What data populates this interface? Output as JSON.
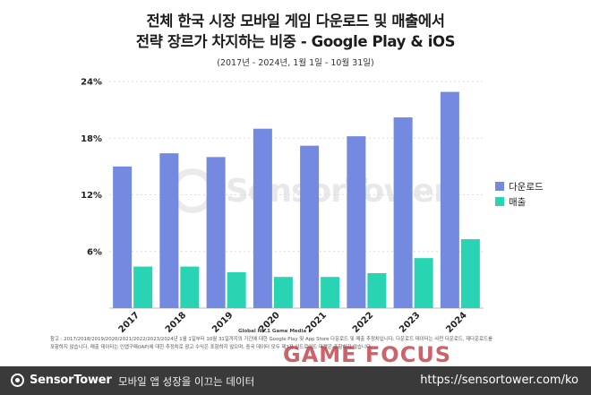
{
  "title_line1": "전체 한국 시장 모바일 게임 다운로드 및 매출에서",
  "title_line2": "전략 장르가 차지하는 비중 - Google Play & iOS",
  "subtitle": "(2017년 - 2024년, 1월 1일 - 10월 31일)",
  "footnote_line1": "참고 : 2017/2018/2019/2020/2021/2022/2023/2024년 1월 1일부터 10월 31일까지의 기간에 대한 Google Play 및 App Store 다운로드 및 매출 추정치입니다. 다운로드 데이터는 사전 다운로드, 재다운로드를",
  "footnote_line2": "포함하지 않습니다. 매출 데이터는 인앱구매(IAP)에 대한 추정치로 광고 수익은 포함하지 않으며, 중국 데이터 모두 제3자 안드로이드 마켓은 포함하지 않습니다.",
  "watermark": "SensorTower",
  "footer": {
    "brand": "SensorTower",
    "tagline": "모바일 앱 성장을 이끄는 데이터",
    "url": "https://sensortower.com/ko"
  },
  "overlay": {
    "small_text": "Global No.1 Game Media",
    "logo_text": "GAME FOCUS"
  },
  "colors": {
    "downloads": "#7489e0",
    "revenue": "#28d4b4",
    "grid": "#dddddd",
    "text": "#222222"
  },
  "chart_data": {
    "type": "bar",
    "categories": [
      "2017",
      "2018",
      "2019",
      "2020",
      "2021",
      "2022",
      "2023",
      "2024"
    ],
    "series": [
      {
        "name": "다운로드",
        "values": [
          15.0,
          16.4,
          16.0,
          19.0,
          17.2,
          18.2,
          20.2,
          22.9
        ]
      },
      {
        "name": "매출",
        "values": [
          4.4,
          4.4,
          3.8,
          3.3,
          3.3,
          3.7,
          5.3,
          7.3
        ]
      }
    ],
    "yticks": [
      "6%",
      "12%",
      "18%",
      "24%"
    ],
    "ylim": [
      0,
      24
    ],
    "legend_position": "right",
    "grid": true
  }
}
